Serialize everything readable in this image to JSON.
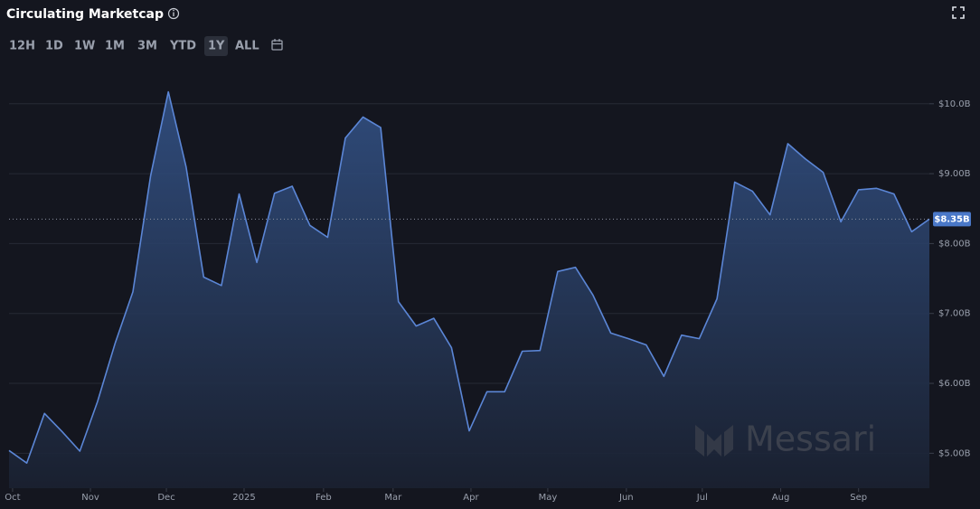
{
  "chart_data": {
    "type": "area",
    "title": "Circulating Marketcap",
    "ranges": [
      "12H",
      "1D",
      "1W",
      "1M",
      "3M",
      "YTD",
      "1Y",
      "ALL"
    ],
    "selected_range": 6,
    "watermark": "Messari",
    "color": "#5b86d6",
    "x": [
      0,
      1,
      2,
      3,
      4,
      5,
      6,
      7,
      8,
      9,
      10,
      11,
      12,
      13,
      14,
      15,
      16,
      17,
      18,
      19,
      20,
      21,
      22,
      23,
      24,
      25,
      26,
      27,
      28,
      29,
      30,
      31,
      32,
      33,
      34,
      35,
      36,
      37,
      38,
      39,
      40,
      41,
      42,
      43,
      44,
      45,
      46,
      47,
      48,
      49,
      50,
      51,
      52
    ],
    "values": [
      5.04,
      4.86,
      5.57,
      5.31,
      5.03,
      5.74,
      6.58,
      7.31,
      8.97,
      10.17,
      9.1,
      7.52,
      7.4,
      8.71,
      7.73,
      8.72,
      8.82,
      8.26,
      8.09,
      9.51,
      9.81,
      9.66,
      7.17,
      6.82,
      6.93,
      6.51,
      5.32,
      5.88,
      5.88,
      6.46,
      6.47,
      7.6,
      7.66,
      7.26,
      6.72,
      6.64,
      6.55,
      6.1,
      6.69,
      6.64,
      7.21,
      8.88,
      8.75,
      8.41,
      9.43,
      9.21,
      9.02,
      8.31,
      8.77,
      8.79,
      8.71,
      8.17,
      8.35
    ],
    "current_value": 8.35,
    "current_label": "$8.35B",
    "xlim": [
      0,
      52
    ],
    "xticks": [
      {
        "value": 0.2,
        "label": "Oct"
      },
      {
        "value": 4.6,
        "label": "Nov"
      },
      {
        "value": 8.89,
        "label": "Dec"
      },
      {
        "value": 13.28,
        "label": "2025"
      },
      {
        "value": 17.77,
        "label": "Feb"
      },
      {
        "value": 21.7,
        "label": "Mar"
      },
      {
        "value": 26.1,
        "label": "Apr"
      },
      {
        "value": 30.44,
        "label": "May"
      },
      {
        "value": 34.88,
        "label": "Jun"
      },
      {
        "value": 39.17,
        "label": "Jul"
      },
      {
        "value": 43.6,
        "label": "Aug"
      },
      {
        "value": 48.0,
        "label": "Sep"
      }
    ],
    "ylim": [
      4.5,
      10.45
    ],
    "yticks": [
      {
        "value": 5,
        "label": "$5.00B"
      },
      {
        "value": 6,
        "label": "$6.00B"
      },
      {
        "value": 7,
        "label": "$7.00B"
      },
      {
        "value": 8,
        "label": "$8.00B"
      },
      {
        "value": 9,
        "label": "$9.00B"
      },
      {
        "value": 10,
        "label": "$10.0B"
      }
    ],
    "grid": true
  }
}
